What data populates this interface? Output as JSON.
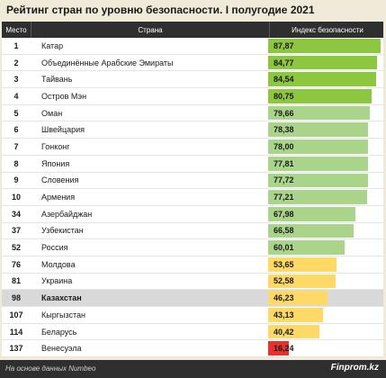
{
  "title": "Рейтинг стран по уровню безопасности. I полугодие 2021",
  "footer": {
    "source": "На основе данных Numbeo",
    "brand": "Finprom.kz"
  },
  "chart_data": {
    "type": "bar",
    "orientation": "horizontal",
    "headers": {
      "rank": "Место",
      "country": "Страна",
      "value": "Индекс безопасности"
    },
    "xlim": [
      0,
      90
    ],
    "rows": [
      {
        "rank": "1",
        "country": "Катар",
        "value": 87.87,
        "label": "87,87",
        "color": "#8dc63f"
      },
      {
        "rank": "2",
        "country": "Объединённые Арабские Эмираты",
        "value": 84.77,
        "label": "84,77",
        "color": "#8dc63f"
      },
      {
        "rank": "3",
        "country": "Тайвань",
        "value": 84.54,
        "label": "84,54",
        "color": "#8dc63f"
      },
      {
        "rank": "4",
        "country": "Остров Мэн",
        "value": 80.75,
        "label": "80,75",
        "color": "#8dc63f"
      },
      {
        "rank": "5",
        "country": "Оман",
        "value": 79.66,
        "label": "79,66",
        "color": "#a9d48a"
      },
      {
        "rank": "6",
        "country": "Швейцария",
        "value": 78.38,
        "label": "78,38",
        "color": "#a9d48a"
      },
      {
        "rank": "7",
        "country": "Гонконг",
        "value": 78.0,
        "label": "78,00",
        "color": "#a9d48a"
      },
      {
        "rank": "8",
        "country": "Япония",
        "value": 77.81,
        "label": "77,81",
        "color": "#a9d48a"
      },
      {
        "rank": "9",
        "country": "Словения",
        "value": 77.72,
        "label": "77,72",
        "color": "#a9d48a"
      },
      {
        "rank": "10",
        "country": "Армения",
        "value": 77.21,
        "label": "77,21",
        "color": "#a9d48a"
      },
      {
        "rank": "34",
        "country": "Азербайджан",
        "value": 67.98,
        "label": "67,98",
        "color": "#a9d48a"
      },
      {
        "rank": "37",
        "country": "Узбекистан",
        "value": 66.58,
        "label": "66,58",
        "color": "#a9d48a"
      },
      {
        "rank": "52",
        "country": "Россия",
        "value": 60.01,
        "label": "60,01",
        "color": "#a9d48a"
      },
      {
        "rank": "76",
        "country": "Молдова",
        "value": 53.65,
        "label": "53,65",
        "color": "#ffd966"
      },
      {
        "rank": "81",
        "country": "Украина",
        "value": 52.58,
        "label": "52,58",
        "color": "#ffd966"
      },
      {
        "rank": "98",
        "country": "Казахстан",
        "value": 46.23,
        "label": "46,23",
        "color": "#ffd966",
        "highlight": true
      },
      {
        "rank": "107",
        "country": "Кыргызстан",
        "value": 43.13,
        "label": "43,13",
        "color": "#ffd966"
      },
      {
        "rank": "114",
        "country": "Беларусь",
        "value": 40.42,
        "label": "40,42",
        "color": "#ffd966"
      },
      {
        "rank": "137",
        "country": "Венесуэла",
        "value": 16.24,
        "label": "16,24",
        "color": "#e8312f"
      }
    ]
  }
}
